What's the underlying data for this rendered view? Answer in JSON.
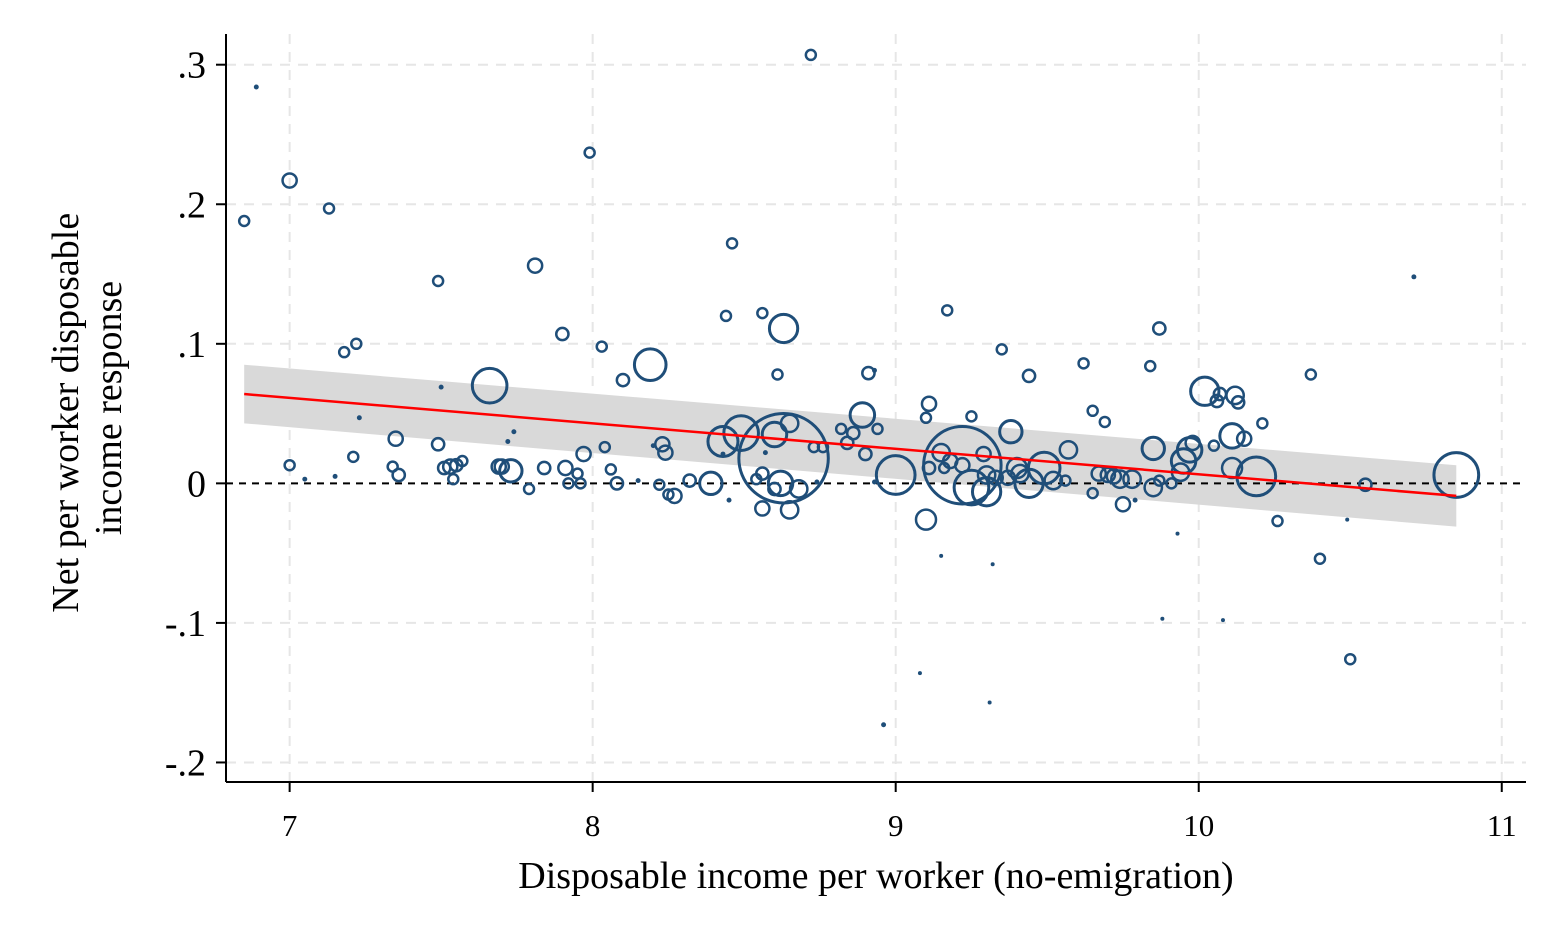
{
  "chart_data": {
    "type": "scatter",
    "title": "",
    "xlabel": "Disposable income per worker (no-emigration)",
    "ylabel_lines": [
      "Net per worker disposable",
      "income response"
    ],
    "xlim": [
      6.79,
      11.08
    ],
    "ylim": [
      -0.214,
      0.322
    ],
    "x_ticks": [
      7,
      8,
      9,
      10,
      11
    ],
    "x_tick_labels": [
      "7",
      "8",
      "9",
      "10",
      "11"
    ],
    "y_ticks": [
      -0.2,
      -0.1,
      0,
      0.1,
      0.2,
      0.3
    ],
    "y_tick_labels": [
      "-.2",
      "-.1",
      "0",
      ".1",
      ".2",
      ".3"
    ],
    "grid": true,
    "reference_line_y": 0,
    "colors": {
      "marker": "#1f4e79",
      "fit_line": "#ff0000",
      "confidence_band": "#d9d9d9",
      "grid": "#e6e6e6",
      "reference_line": "#000000"
    },
    "fit": {
      "x": [
        6.85,
        10.85
      ],
      "y": [
        0.064,
        -0.009
      ],
      "ci_upper": [
        0.085,
        0.013
      ],
      "ci_lower": [
        0.043,
        -0.031
      ]
    },
    "point_fields": [
      "x",
      "y",
      "weight"
    ],
    "points": [
      [
        6.85,
        0.188,
        1
      ],
      [
        6.89,
        0.284,
        0.5
      ],
      [
        7.0,
        0.217,
        2
      ],
      [
        7.0,
        0.013,
        1
      ],
      [
        7.05,
        0.003,
        0.5
      ],
      [
        7.13,
        0.197,
        1
      ],
      [
        7.15,
        0.005,
        0.5
      ],
      [
        7.18,
        0.094,
        1
      ],
      [
        7.21,
        0.019,
        1
      ],
      [
        7.22,
        0.1,
        1
      ],
      [
        7.23,
        0.047,
        0.5
      ],
      [
        7.34,
        0.012,
        1
      ],
      [
        7.35,
        0.032,
        2
      ],
      [
        7.36,
        0.006,
        1.5
      ],
      [
        7.49,
        0.145,
        1
      ],
      [
        7.49,
        0.028,
        1.5
      ],
      [
        7.5,
        0.069,
        0.5
      ],
      [
        7.51,
        0.011,
        1.5
      ],
      [
        7.53,
        0.012,
        2
      ],
      [
        7.54,
        0.003,
        1
      ],
      [
        7.55,
        0.013,
        1.5
      ],
      [
        7.57,
        0.016,
        1
      ],
      [
        7.66,
        0.07,
        12
      ],
      [
        7.69,
        0.012,
        2
      ],
      [
        7.7,
        0.012,
        2
      ],
      [
        7.72,
        0.03,
        0.5
      ],
      [
        7.73,
        0.009,
        5
      ],
      [
        7.74,
        0.037,
        0.5
      ],
      [
        7.79,
        -0.004,
        1
      ],
      [
        7.81,
        0.156,
        2
      ],
      [
        7.84,
        0.011,
        1.5
      ],
      [
        7.9,
        0.107,
        1.5
      ],
      [
        7.91,
        0.011,
        2
      ],
      [
        7.92,
        0.0,
        1
      ],
      [
        7.95,
        0.007,
        1
      ],
      [
        7.96,
        0.0,
        1
      ],
      [
        7.97,
        0.021,
        2
      ],
      [
        7.99,
        0.237,
        1
      ],
      [
        8.03,
        0.098,
        1
      ],
      [
        8.04,
        0.026,
        1
      ],
      [
        8.06,
        0.01,
        1
      ],
      [
        8.08,
        0.0,
        1.5
      ],
      [
        8.1,
        0.074,
        1.5
      ],
      [
        8.15,
        0.002,
        0.5
      ],
      [
        8.19,
        0.085,
        10
      ],
      [
        8.2,
        0.027,
        0.5
      ],
      [
        8.22,
        -0.001,
        1
      ],
      [
        8.23,
        0.028,
        2
      ],
      [
        8.24,
        0.022,
        2
      ],
      [
        8.25,
        -0.008,
        1
      ],
      [
        8.27,
        -0.009,
        2
      ],
      [
        8.32,
        0.002,
        1.5
      ],
      [
        8.39,
        0.0,
        5
      ],
      [
        8.43,
        0.03,
        9
      ],
      [
        8.43,
        0.021,
        0.5
      ],
      [
        8.44,
        0.12,
        1
      ],
      [
        8.45,
        -0.012,
        0.5
      ],
      [
        8.46,
        0.172,
        1
      ],
      [
        8.49,
        0.036,
        12
      ],
      [
        8.54,
        0.003,
        1
      ],
      [
        8.56,
        0.122,
        1
      ],
      [
        8.56,
        0.007,
        1.5
      ],
      [
        8.56,
        -0.018,
        2
      ],
      [
        8.57,
        0.022,
        0.5
      ],
      [
        8.6,
        0.035,
        6
      ],
      [
        8.6,
        -0.004,
        1.5
      ],
      [
        8.61,
        0.078,
        1
      ],
      [
        8.62,
        0.0,
        6
      ],
      [
        8.63,
        0.111,
        8
      ],
      [
        8.63,
        0.018,
        80
      ],
      [
        8.65,
        0.043,
        3
      ],
      [
        8.65,
        -0.019,
        3
      ],
      [
        8.68,
        -0.004,
        3
      ],
      [
        8.73,
        0.026,
        1
      ],
      [
        8.74,
        0.001,
        0.5
      ],
      [
        8.72,
        0.307,
        1
      ],
      [
        8.76,
        0.026,
        1
      ],
      [
        8.82,
        0.039,
        1
      ],
      [
        8.84,
        0.029,
        1.5
      ],
      [
        8.86,
        0.036,
        1.5
      ],
      [
        8.89,
        0.049,
        6
      ],
      [
        8.9,
        0.021,
        1.5
      ],
      [
        8.91,
        0.079,
        1.5
      ],
      [
        8.93,
        0.081,
        0.5
      ],
      [
        8.93,
        0.001,
        0.5
      ],
      [
        8.94,
        0.039,
        1
      ],
      [
        8.96,
        -0.173,
        0.5
      ],
      [
        9.0,
        0.006,
        15
      ],
      [
        9.08,
        -0.136,
        0.3
      ],
      [
        9.1,
        -0.026,
        4
      ],
      [
        9.1,
        0.047,
        1
      ],
      [
        9.11,
        0.057,
        2
      ],
      [
        9.11,
        0.011,
        1.5
      ],
      [
        9.15,
        -0.052,
        0.3
      ],
      [
        9.15,
        0.022,
        3
      ],
      [
        9.16,
        0.011,
        1
      ],
      [
        9.17,
        0.124,
        1
      ],
      [
        9.18,
        0.016,
        2
      ],
      [
        9.22,
        0.013,
        60
      ],
      [
        9.22,
        0.013,
        2
      ],
      [
        9.25,
        0.048,
        1
      ],
      [
        9.25,
        -0.003,
        12
      ],
      [
        9.29,
        0.021,
        2
      ],
      [
        9.3,
        -0.006,
        8
      ],
      [
        9.3,
        0.006,
        3
      ],
      [
        9.31,
        -0.157,
        0.3
      ],
      [
        9.32,
        -0.058,
        0.3
      ],
      [
        9.33,
        0.004,
        2
      ],
      [
        9.35,
        0.096,
        1
      ],
      [
        9.37,
        0.004,
        2
      ],
      [
        9.38,
        0.037,
        5
      ],
      [
        9.4,
        0.011,
        4
      ],
      [
        9.41,
        0.007,
        3
      ],
      [
        9.44,
        0.077,
        1.5
      ],
      [
        9.44,
        0.0,
        8
      ],
      [
        9.49,
        0.011,
        10
      ],
      [
        9.52,
        0.002,
        3
      ],
      [
        9.56,
        0.002,
        1
      ],
      [
        9.57,
        0.024,
        3
      ],
      [
        9.62,
        0.086,
        1
      ],
      [
        9.65,
        0.052,
        1
      ],
      [
        9.65,
        -0.007,
        1
      ],
      [
        9.67,
        0.007,
        2
      ],
      [
        9.69,
        0.044,
        1
      ],
      [
        9.7,
        0.006,
        2
      ],
      [
        9.72,
        0.005,
        2
      ],
      [
        9.74,
        0.003,
        3
      ],
      [
        9.75,
        -0.015,
        2
      ],
      [
        9.78,
        0.003,
        3
      ],
      [
        9.79,
        -0.012,
        0.5
      ],
      [
        9.84,
        0.084,
        1
      ],
      [
        9.85,
        0.025,
        5
      ],
      [
        9.85,
        -0.003,
        3
      ],
      [
        9.87,
        0.111,
        1.5
      ],
      [
        9.87,
        0.002,
        1
      ],
      [
        9.88,
        -0.097,
        0.3
      ],
      [
        9.91,
        0.0,
        1
      ],
      [
        9.93,
        -0.036,
        0.3
      ],
      [
        9.94,
        0.008,
        3
      ],
      [
        9.95,
        0.016,
        6
      ],
      [
        9.97,
        0.024,
        6
      ],
      [
        9.98,
        0.029,
        2
      ],
      [
        10.02,
        0.066,
        8
      ],
      [
        10.05,
        0.027,
        1
      ],
      [
        10.06,
        0.059,
        1.5
      ],
      [
        10.07,
        0.064,
        1.5
      ],
      [
        10.08,
        -0.098,
        0.3
      ],
      [
        10.11,
        0.034,
        6
      ],
      [
        10.11,
        0.011,
        4
      ],
      [
        10.12,
        0.063,
        3
      ],
      [
        10.13,
        0.058,
        1.5
      ],
      [
        10.15,
        0.032,
        2
      ],
      [
        10.19,
        0.005,
        15
      ],
      [
        10.21,
        0.043,
        1
      ],
      [
        10.26,
        -0.027,
        1
      ],
      [
        10.37,
        0.078,
        1
      ],
      [
        10.4,
        -0.054,
        1
      ],
      [
        10.49,
        -0.026,
        0.3
      ],
      [
        10.5,
        -0.126,
        1
      ],
      [
        10.55,
        -0.001,
        1.5
      ],
      [
        10.71,
        0.148,
        0.5
      ],
      [
        10.85,
        0.006,
        20
      ]
    ]
  }
}
